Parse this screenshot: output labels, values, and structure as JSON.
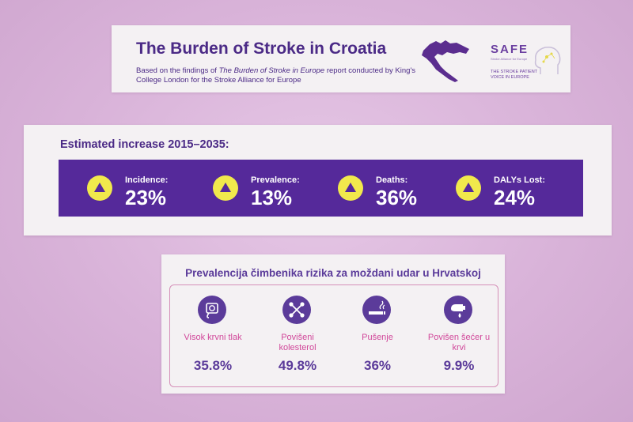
{
  "header": {
    "title": "The Burden of Stroke in Croatia",
    "subtitle_prefix": "Based on the findings of ",
    "subtitle_italic": "The Burden of Stroke in Europe",
    "subtitle_suffix": " report conducted by King's College London for the Stroke Alliance for Europe",
    "logo_title": "SAFE",
    "logo_subtitle": "Stroke Alliance for Europe",
    "logo_tagline": "THE STROKE PATIENT VOICE IN EUROPE"
  },
  "increase": {
    "heading": "Estimated increase 2015–2035:",
    "stats": [
      {
        "label": "Incidence:",
        "value": "23%"
      },
      {
        "label": "Prevalence:",
        "value": "13%"
      },
      {
        "label": "Deaths:",
        "value": "36%"
      },
      {
        "label": "DALYs Lost:",
        "value": "24%"
      }
    ]
  },
  "risk": {
    "heading": "Prevalencija čimbenika rizika za moždani udar u Hrvatskoj",
    "factors": [
      {
        "icon": "blood-pressure-icon",
        "label": "Visok krvni tlak",
        "value": "35.8%"
      },
      {
        "icon": "cholesterol-icon",
        "label": "Povišeni kolesterol",
        "value": "49.8%"
      },
      {
        "icon": "cigarette-icon",
        "label": "Pušenje",
        "value": "36%"
      },
      {
        "icon": "blood-sugar-icon",
        "label": "Povišen šećer u krvi",
        "value": "9.9%"
      }
    ]
  },
  "colors": {
    "purple": "#55299a",
    "yellow": "#f1e94c",
    "pink": "#d1489a",
    "background": "#d9b3d9"
  }
}
